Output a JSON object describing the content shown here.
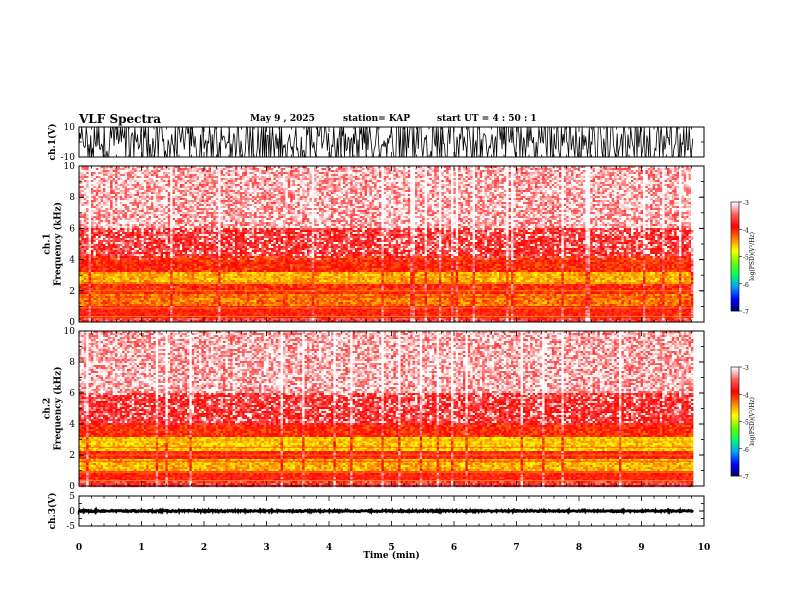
{
  "header": {
    "title": "VLF Spectra",
    "date": "May 9  , 2025",
    "station": "station= KAP",
    "start": "start  UT  =   4 : 50 : 1"
  },
  "colorbar": {
    "label": "log(PSD)(V²/Hz)",
    "ticks": [
      -7,
      -6,
      -5,
      -4,
      -3
    ],
    "stops": [
      "#000060",
      "#0000ff",
      "#00a0ff",
      "#00ff66",
      "#66ff00",
      "#ffff00",
      "#ff8000",
      "#ff0000",
      "#ff6060",
      "#ffffff"
    ]
  },
  "chart_data": [
    {
      "type": "line",
      "name": "ch1-waveform",
      "ylabel": "ch.1(V)",
      "xlim": [
        0,
        10
      ],
      "ylim": [
        -10,
        10
      ],
      "y_ticks": [
        -10,
        10
      ],
      "x_data_end": 9.83,
      "description_values": {
        "approx_range": [
          -10,
          10
        ]
      }
    },
    {
      "type": "heatmap",
      "name": "ch1-spectrogram",
      "ylabel": "ch.1\nFrequency (kHz)",
      "xlim": [
        0,
        10
      ],
      "ylim": [
        0,
        10
      ],
      "y_ticks": [
        0,
        2,
        4,
        6,
        8,
        10
      ],
      "x_data_end": 9.83,
      "zlim": [
        -7,
        -3
      ],
      "intensity_bands": [
        {
          "f_range": [
            0,
            0.3
          ],
          "logpsd": -3.6
        },
        {
          "f_range": [
            0.3,
            1.0
          ],
          "logpsd": -3.9
        },
        {
          "f_range": [
            1.0,
            1.8
          ],
          "logpsd": -4.3
        },
        {
          "f_range": [
            1.8,
            2.4
          ],
          "logpsd": -4.0
        },
        {
          "f_range": [
            2.4,
            3.2
          ],
          "logpsd": -4.5
        },
        {
          "f_range": [
            3.2,
            4.2
          ],
          "logpsd": -4.0
        },
        {
          "f_range": [
            4.2,
            6.0
          ],
          "logpsd": -3.7
        },
        {
          "f_range": [
            6.0,
            10.0
          ],
          "logpsd": -3.3
        }
      ]
    },
    {
      "type": "heatmap",
      "name": "ch2-spectrogram",
      "ylabel": "ch.2\nFrequency (kHz)",
      "xlim": [
        0,
        10
      ],
      "ylim": [
        0,
        10
      ],
      "y_ticks": [
        0,
        2,
        4,
        6,
        8,
        10
      ],
      "x_data_end": 9.83,
      "zlim": [
        -7,
        -3
      ],
      "intensity_bands": [
        {
          "f_range": [
            0,
            0.3
          ],
          "logpsd": -3.6
        },
        {
          "f_range": [
            0.3,
            1.0
          ],
          "logpsd": -3.9
        },
        {
          "f_range": [
            1.0,
            1.8
          ],
          "logpsd": -4.5
        },
        {
          "f_range": [
            1.8,
            2.2
          ],
          "logpsd": -3.9
        },
        {
          "f_range": [
            2.2,
            3.2
          ],
          "logpsd": -4.6
        },
        {
          "f_range": [
            3.2,
            4.0
          ],
          "logpsd": -4.0
        },
        {
          "f_range": [
            4.0,
            6.0
          ],
          "logpsd": -3.7
        },
        {
          "f_range": [
            6.0,
            10.0
          ],
          "logpsd": -3.3
        }
      ]
    },
    {
      "type": "line",
      "name": "ch3-waveform",
      "ylabel": "ch.3(V)",
      "xlim": [
        0,
        10
      ],
      "ylim": [
        -5,
        5
      ],
      "y_ticks": [
        -5,
        0,
        5
      ],
      "x_data_end": 9.83,
      "description_values": {
        "approx_range": [
          -0.3,
          0.3
        ]
      }
    }
  ],
  "xaxis": {
    "label": "Time  (min)",
    "ticks": [
      0,
      1,
      2,
      3,
      4,
      5,
      6,
      7,
      8,
      9,
      10
    ]
  }
}
